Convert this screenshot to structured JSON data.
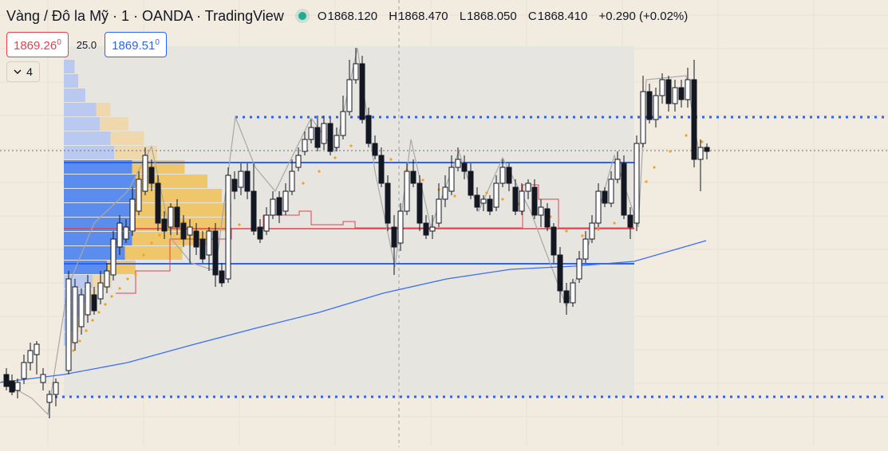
{
  "header": {
    "symbol_title": "Vàng / Đô la Mỹ · 1 · OANDA · TradingView",
    "market_status_color": "#22ab94",
    "ohlc": {
      "o_label": "O",
      "o_value": "1868.120",
      "h_label": "H",
      "h_value": "1868.470",
      "l_label": "L",
      "l_value": "1868.050",
      "c_label": "C",
      "c_value": "1868.410",
      "change": "+0.290 (+0.02%)"
    }
  },
  "trade": {
    "sell_price": "1869.26",
    "sell_superscript": "0",
    "spread": "25.0",
    "buy_price": "1869.51",
    "buy_superscript": "0"
  },
  "indicators": {
    "collapse_icon": "chevron-down-icon",
    "count": "4"
  },
  "colors": {
    "background": "#f2ebe0",
    "grid": "#e9e2d6",
    "range_box": "#e6e5e0",
    "level_dotted": "#2962ff",
    "value_area_line": "#2962ff",
    "poc_line": "#e0424f",
    "moving_average": "#3b6ef5",
    "parabolic_sar": "#f4a020",
    "volume_profile_blue": "#5b8def",
    "volume_profile_light_blue": "#b9c9ef",
    "volume_profile_orange": "#f0c66a",
    "volume_profile_light_orange": "#efd9ac",
    "candle_up": "#ffffff",
    "candle_down": "#131722",
    "zigzag": "#9e9e9e"
  },
  "chart_data": {
    "type": "candlestick",
    "instrument": "XAU/USD",
    "timeframe": "1",
    "title": "Vàng / Đô la Mỹ · 1 · OANDA · TradingView",
    "ylim": [
      1861.4,
      1876.3
    ],
    "levels": {
      "resistance_dotted": 1872.3,
      "support_dotted": 1862.1,
      "last_price_dotted": 1869.55,
      "value_area_high": 1868.95,
      "point_of_control": 1866.6,
      "value_area_low": 1865.3
    },
    "candles_close": [
      1863.5,
      1864.3,
      1863.4,
      1862.2,
      1863.4,
      1865.6,
      1867.5,
      1866.0,
      1866.5,
      1869.3,
      1869.5,
      1867.0,
      1866.6,
      1866.3,
      1867.8,
      1868.8,
      1869.4,
      1866.9,
      1867.8,
      1870.4,
      1871.0,
      1870.6,
      1872.5,
      1872.3,
      1870.0,
      1869.5,
      1868.2,
      1867.0,
      1868.6,
      1869.0,
      1868.2,
      1869.0,
      1868.4,
      1868.6,
      1867.9,
      1868.0,
      1867.6,
      1866.6,
      1866.4,
      1867.0,
      1866.2,
      1866.0,
      1867.5,
      1869.6,
      1868.6,
      1870.9,
      1871.7,
      1872.5,
      1871.6,
      1870.6,
      1869.2,
      1869.6
    ],
    "moving_average_series": [
      1862.5,
      1863.2,
      1863.8,
      1864.6,
      1865.0,
      1865.3,
      1865.5,
      1865.8,
      1866.2,
      1866.3
    ]
  }
}
